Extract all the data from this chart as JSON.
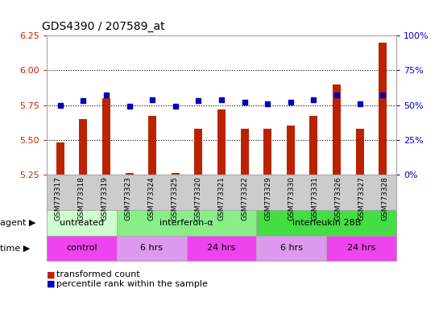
{
  "title": "GDS4390 / 207589_at",
  "samples": [
    "GSM773317",
    "GSM773318",
    "GSM773319",
    "GSM773323",
    "GSM773324",
    "GSM773325",
    "GSM773320",
    "GSM773321",
    "GSM773322",
    "GSM773329",
    "GSM773330",
    "GSM773331",
    "GSM773326",
    "GSM773327",
    "GSM773328"
  ],
  "transformed_count": [
    5.48,
    5.65,
    5.8,
    5.26,
    5.67,
    5.26,
    5.58,
    5.72,
    5.58,
    5.58,
    5.6,
    5.67,
    5.9,
    5.58,
    6.2
  ],
  "percentile_rank": [
    50,
    53,
    57,
    49,
    54,
    49,
    53,
    54,
    52,
    51,
    52,
    54,
    57,
    51,
    57
  ],
  "ylim_left": [
    5.25,
    6.25
  ],
  "ylim_right": [
    0,
    100
  ],
  "yticks_left": [
    5.25,
    5.5,
    5.75,
    6.0,
    6.25
  ],
  "yticks_right": [
    0,
    25,
    50,
    75,
    100
  ],
  "ytick_labels_right": [
    "0%",
    "25%",
    "50%",
    "75%",
    "100%"
  ],
  "hlines": [
    5.5,
    5.75,
    6.0
  ],
  "bar_color": "#bb2200",
  "dot_color": "#0000bb",
  "bar_width": 0.35,
  "agent_groups": [
    {
      "label": "untreated",
      "start": 0,
      "end": 3,
      "color": "#ccffcc"
    },
    {
      "label": "interferon-α",
      "start": 3,
      "end": 9,
      "color": "#88ee88"
    },
    {
      "label": "interleukin 28B",
      "start": 9,
      "end": 15,
      "color": "#44dd44"
    }
  ],
  "time_groups": [
    {
      "label": "control",
      "start": 0,
      "end": 3,
      "color": "#ee44ee"
    },
    {
      "label": "6 hrs",
      "start": 3,
      "end": 6,
      "color": "#dd99ee"
    },
    {
      "label": "24 hrs",
      "start": 6,
      "end": 9,
      "color": "#ee44ee"
    },
    {
      "label": "6 hrs",
      "start": 9,
      "end": 12,
      "color": "#dd99ee"
    },
    {
      "label": "24 hrs",
      "start": 12,
      "end": 15,
      "color": "#ee44ee"
    }
  ],
  "legend_items": [
    {
      "label": "transformed count",
      "color": "#bb2200"
    },
    {
      "label": "percentile rank within the sample",
      "color": "#0000bb"
    }
  ],
  "left_tick_color": "#cc2200",
  "right_tick_color": "#0000cc",
  "plot_bg_color": "#ffffff",
  "xtick_bg_color": "#cccccc",
  "fig_bg_color": "#ffffff"
}
